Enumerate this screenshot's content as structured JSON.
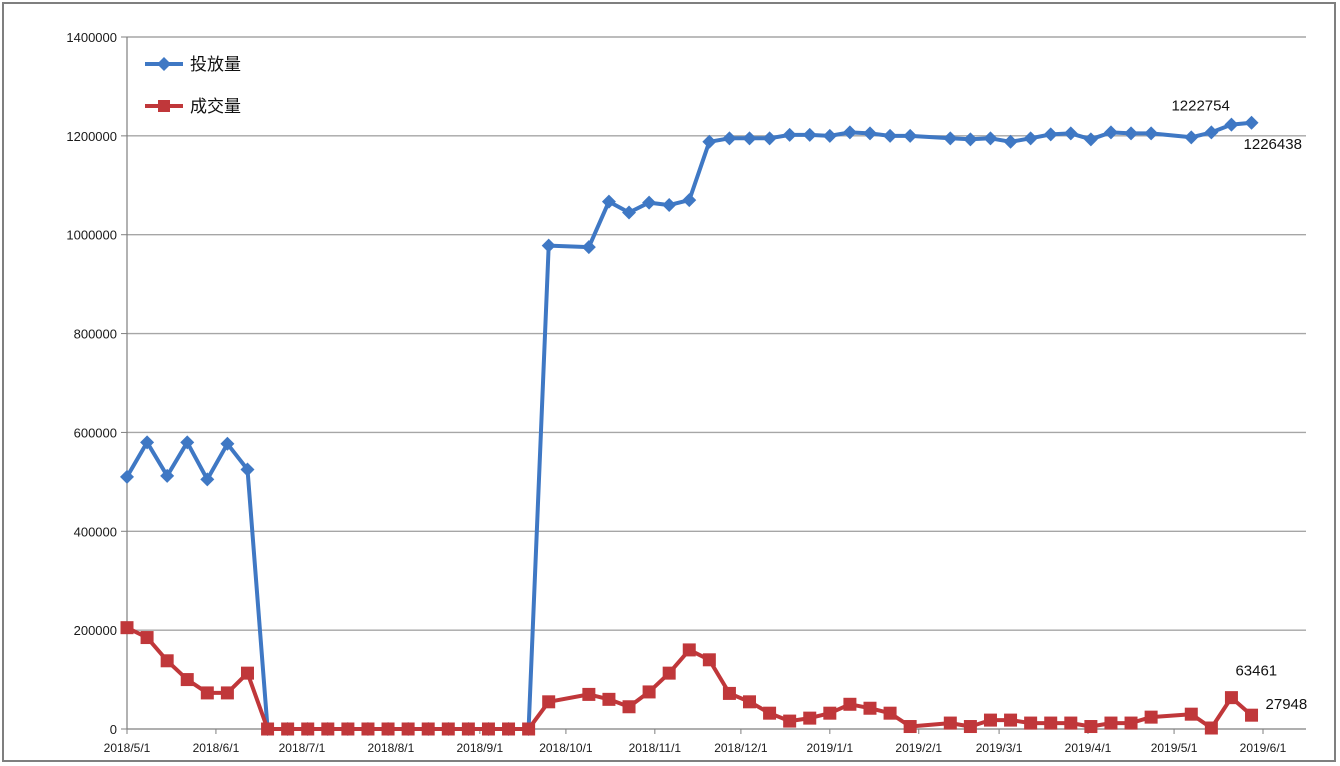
{
  "chart_data": {
    "type": "line",
    "title": "",
    "xlabel": "",
    "ylabel": "",
    "ylim": [
      0,
      1400000
    ],
    "y_ticks": [
      "0",
      "200000",
      "400000",
      "600000",
      "800000",
      "1000000",
      "1200000",
      "1400000"
    ],
    "x_range": [
      "2018-05-01",
      "2019-06-10"
    ],
    "x_ticks": [
      {
        "date": "2018-05-01",
        "label": "2018/5/1"
      },
      {
        "date": "2018-06-01",
        "label": "2018/6/1"
      },
      {
        "date": "2018-07-01",
        "label": "2018/7/1"
      },
      {
        "date": "2018-08-01",
        "label": "2018/8/1"
      },
      {
        "date": "2018-09-01",
        "label": "2018/9/1"
      },
      {
        "date": "2018-10-01",
        "label": "2018/10/1"
      },
      {
        "date": "2018-11-01",
        "label": "2018/11/1"
      },
      {
        "date": "2018-12-01",
        "label": "2018/12/1"
      },
      {
        "date": "2019-01-01",
        "label": "2019/1/1"
      },
      {
        "date": "2019-02-01",
        "label": "2019/2/1"
      },
      {
        "date": "2019-03-01",
        "label": "2019/3/1"
      },
      {
        "date": "2019-04-01",
        "label": "2019/4/1"
      },
      {
        "date": "2019-05-01",
        "label": "2019/5/1"
      },
      {
        "date": "2019-06-01",
        "label": "2019/6/1"
      }
    ],
    "grid": "horizontal",
    "legend_position": "top-left",
    "series": [
      {
        "name": "投放量",
        "color": "#3f78c4",
        "marker": "diamond",
        "points": [
          [
            "2018-05-01",
            510000
          ],
          [
            "2018-05-08",
            580000
          ],
          [
            "2018-05-15",
            512000
          ],
          [
            "2018-05-22",
            580000
          ],
          [
            "2018-05-29",
            505000
          ],
          [
            "2018-06-05",
            577000
          ],
          [
            "2018-06-12",
            525000
          ],
          [
            "2018-06-19",
            0
          ],
          [
            "2018-06-26",
            0
          ],
          [
            "2018-07-03",
            0
          ],
          [
            "2018-07-10",
            0
          ],
          [
            "2018-07-17",
            0
          ],
          [
            "2018-07-24",
            0
          ],
          [
            "2018-07-31",
            0
          ],
          [
            "2018-08-07",
            0
          ],
          [
            "2018-08-14",
            0
          ],
          [
            "2018-08-21",
            0
          ],
          [
            "2018-08-28",
            0
          ],
          [
            "2018-09-04",
            0
          ],
          [
            "2018-09-11",
            0
          ],
          [
            "2018-09-18",
            0
          ],
          [
            "2018-09-25",
            978000
          ],
          [
            "2018-10-09",
            975000
          ],
          [
            "2018-10-16",
            1067000
          ],
          [
            "2018-10-23",
            1045000
          ],
          [
            "2018-10-30",
            1065000
          ],
          [
            "2018-11-06",
            1060000
          ],
          [
            "2018-11-13",
            1070000
          ],
          [
            "2018-11-20",
            1188000
          ],
          [
            "2018-11-27",
            1195000
          ],
          [
            "2018-12-04",
            1195000
          ],
          [
            "2018-12-11",
            1195000
          ],
          [
            "2018-12-18",
            1202000
          ],
          [
            "2018-12-25",
            1202000
          ],
          [
            "2019-01-01",
            1200000
          ],
          [
            "2019-01-08",
            1207000
          ],
          [
            "2019-01-15",
            1205000
          ],
          [
            "2019-01-22",
            1200000
          ],
          [
            "2019-01-29",
            1200000
          ],
          [
            "2019-02-12",
            1195000
          ],
          [
            "2019-02-19",
            1193000
          ],
          [
            "2019-02-26",
            1195000
          ],
          [
            "2019-03-05",
            1188000
          ],
          [
            "2019-03-12",
            1195000
          ],
          [
            "2019-03-19",
            1203000
          ],
          [
            "2019-03-26",
            1205000
          ],
          [
            "2019-04-02",
            1193000
          ],
          [
            "2019-04-09",
            1207000
          ],
          [
            "2019-04-16",
            1205000
          ],
          [
            "2019-04-23",
            1205000
          ],
          [
            "2019-05-07",
            1197000
          ],
          [
            "2019-05-14",
            1207000
          ],
          [
            "2019-05-21",
            1222754
          ],
          [
            "2019-05-28",
            1226438
          ]
        ]
      },
      {
        "name": "成交量",
        "color": "#c0373a",
        "marker": "square",
        "points": [
          [
            "2018-05-01",
            205000
          ],
          [
            "2018-05-08",
            185000
          ],
          [
            "2018-05-15",
            138000
          ],
          [
            "2018-05-22",
            100000
          ],
          [
            "2018-05-29",
            73000
          ],
          [
            "2018-06-05",
            73000
          ],
          [
            "2018-06-12",
            113000
          ],
          [
            "2018-06-19",
            0
          ],
          [
            "2018-06-26",
            0
          ],
          [
            "2018-07-03",
            0
          ],
          [
            "2018-07-10",
            0
          ],
          [
            "2018-07-17",
            0
          ],
          [
            "2018-07-24",
            0
          ],
          [
            "2018-07-31",
            0
          ],
          [
            "2018-08-07",
            0
          ],
          [
            "2018-08-14",
            0
          ],
          [
            "2018-08-21",
            0
          ],
          [
            "2018-08-28",
            0
          ],
          [
            "2018-09-04",
            0
          ],
          [
            "2018-09-11",
            0
          ],
          [
            "2018-09-18",
            0
          ],
          [
            "2018-09-25",
            55000
          ],
          [
            "2018-10-09",
            70000
          ],
          [
            "2018-10-16",
            60000
          ],
          [
            "2018-10-23",
            45000
          ],
          [
            "2018-10-30",
            75000
          ],
          [
            "2018-11-06",
            113000
          ],
          [
            "2018-11-13",
            160000
          ],
          [
            "2018-11-20",
            140000
          ],
          [
            "2018-11-27",
            72000
          ],
          [
            "2018-12-04",
            55000
          ],
          [
            "2018-12-11",
            32000
          ],
          [
            "2018-12-18",
            16000
          ],
          [
            "2018-12-25",
            22000
          ],
          [
            "2019-01-01",
            32000
          ],
          [
            "2019-01-08",
            50000
          ],
          [
            "2019-01-15",
            42000
          ],
          [
            "2019-01-22",
            32000
          ],
          [
            "2019-01-29",
            5000
          ],
          [
            "2019-02-12",
            12000
          ],
          [
            "2019-02-19",
            5000
          ],
          [
            "2019-02-26",
            18000
          ],
          [
            "2019-03-05",
            18000
          ],
          [
            "2019-03-12",
            12000
          ],
          [
            "2019-03-19",
            12000
          ],
          [
            "2019-03-26",
            12000
          ],
          [
            "2019-04-02",
            5000
          ],
          [
            "2019-04-09",
            12000
          ],
          [
            "2019-04-16",
            12000
          ],
          [
            "2019-04-23",
            24000
          ],
          [
            "2019-05-07",
            30000
          ],
          [
            "2019-05-14",
            2000
          ],
          [
            "2019-05-21",
            63461
          ],
          [
            "2019-05-28",
            27948
          ]
        ]
      }
    ],
    "annotations": [
      {
        "text": "1222754",
        "date": "2019-05-21",
        "series": 0
      },
      {
        "text": "1226438",
        "date": "2019-05-28",
        "series": 0
      },
      {
        "text": "63461",
        "date": "2019-05-21",
        "series": 1
      },
      {
        "text": "27948",
        "date": "2019-05-28",
        "series": 1
      }
    ]
  }
}
